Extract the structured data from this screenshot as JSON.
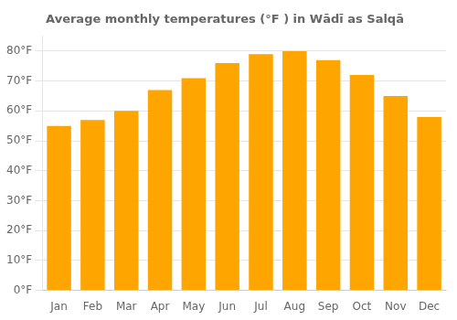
{
  "chart_data": {
    "type": "bar",
    "title": "Average monthly temperatures (°F ) in Wādī as Salqā",
    "categories": [
      "Jan",
      "Feb",
      "Mar",
      "Apr",
      "May",
      "Jun",
      "Jul",
      "Aug",
      "Sep",
      "Oct",
      "Nov",
      "Dec"
    ],
    "values": [
      55,
      57,
      60,
      67,
      71,
      76,
      79,
      80,
      77,
      72,
      65,
      58
    ],
    "color": "#FFA500",
    "ylim": [
      0,
      85
    ],
    "yticks": [
      {
        "value": 0,
        "label": "0°F"
      },
      {
        "value": 10,
        "label": "10°F"
      },
      {
        "value": 20,
        "label": "20°F"
      },
      {
        "value": 30,
        "label": "30°F"
      },
      {
        "value": 40,
        "label": "40°F"
      },
      {
        "value": 50,
        "label": "50°F"
      },
      {
        "value": 60,
        "label": "60°F"
      },
      {
        "value": 70,
        "label": "70°F"
      },
      {
        "value": 80,
        "label": "80°F"
      }
    ],
    "grid": true
  }
}
